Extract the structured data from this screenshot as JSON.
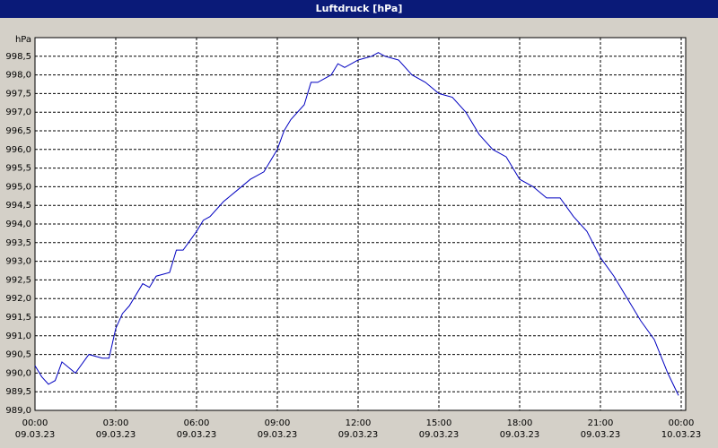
{
  "chart_data": {
    "type": "line",
    "title": "Luftdruck [hPa]",
    "y_unit": "hPa",
    "xlim": [
      0,
      24
    ],
    "ylim": [
      989,
      999
    ],
    "xticks": [
      {
        "value": 0,
        "label": "00:00\n09.03.23"
      },
      {
        "value": 3,
        "label": "03:00\n09.03.23"
      },
      {
        "value": 6,
        "label": "06:00\n09.03.23"
      },
      {
        "value": 9,
        "label": "09:00\n09.03.23"
      },
      {
        "value": 12,
        "label": "12:00\n09.03.23"
      },
      {
        "value": 15,
        "label": "15:00\n09.03.23"
      },
      {
        "value": 18,
        "label": "18:00\n09.03.23"
      },
      {
        "value": 21,
        "label": "21:00\n09.03.23"
      },
      {
        "value": 24,
        "label": "00:00\n10.03.23"
      }
    ],
    "yticks": [
      {
        "value": 989,
        "label": "989,0"
      },
      {
        "value": 989.5,
        "label": "989,5"
      },
      {
        "value": 990,
        "label": "990,0"
      },
      {
        "value": 990.5,
        "label": "990,5"
      },
      {
        "value": 991,
        "label": "991,0"
      },
      {
        "value": 991.5,
        "label": "991,5"
      },
      {
        "value": 992,
        "label": "992,0"
      },
      {
        "value": 992.5,
        "label": "992,5"
      },
      {
        "value": 993,
        "label": "993,0"
      },
      {
        "value": 993.5,
        "label": "993,5"
      },
      {
        "value": 994,
        "label": "994,0"
      },
      {
        "value": 994.5,
        "label": "994,5"
      },
      {
        "value": 995,
        "label": "995,0"
      },
      {
        "value": 995.5,
        "label": "995,5"
      },
      {
        "value": 996,
        "label": "996,0"
      },
      {
        "value": 996.5,
        "label": "996,5"
      },
      {
        "value": 997,
        "label": "997,0"
      },
      {
        "value": 997.5,
        "label": "997,5"
      },
      {
        "value": 998,
        "label": "998,0"
      },
      {
        "value": 998.5,
        "label": "998,5"
      }
    ],
    "grid": true,
    "x": [
      0,
      0.25,
      0.5,
      0.75,
      1,
      1.5,
      2,
      2.5,
      2.75,
      3,
      3.25,
      3.5,
      4,
      4.25,
      4.5,
      5,
      5.25,
      5.5,
      6,
      6.25,
      6.5,
      7,
      7.5,
      8,
      8.5,
      9,
      9.25,
      9.5,
      10,
      10.25,
      10.5,
      11,
      11.25,
      11.5,
      12,
      12.5,
      12.75,
      13,
      13.5,
      14,
      14.5,
      15,
      15.5,
      16,
      16.5,
      17,
      17.5,
      18,
      18.5,
      19,
      19.5,
      20,
      20.5,
      21,
      21.5,
      22,
      22.5,
      23,
      23.5,
      23.9
    ],
    "series": [
      {
        "name": "Luftdruck",
        "color": "#0000c0",
        "values": [
          990.2,
          989.9,
          989.7,
          989.8,
          990.3,
          990.0,
          990.5,
          990.4,
          990.4,
          991.2,
          991.6,
          991.8,
          992.4,
          992.3,
          992.6,
          992.7,
          993.3,
          993.3,
          993.8,
          994.1,
          994.2,
          994.6,
          994.9,
          995.2,
          995.4,
          996.0,
          996.5,
          996.8,
          997.2,
          997.8,
          997.8,
          998.0,
          998.3,
          998.2,
          998.4,
          998.5,
          998.6,
          998.5,
          998.4,
          998.0,
          997.8,
          997.5,
          997.4,
          997.0,
          996.4,
          996.0,
          995.8,
          995.2,
          995.0,
          994.7,
          994.7,
          994.2,
          993.8,
          993.1,
          992.6,
          992.0,
          991.4,
          990.9,
          990.0,
          989.4
        ]
      }
    ]
  }
}
